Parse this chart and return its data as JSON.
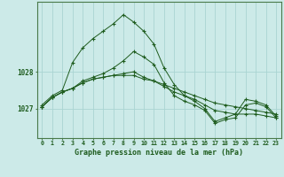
{
  "title": "Graphe pression niveau de la mer (hPa)",
  "x_labels": [
    "0",
    "1",
    "2",
    "3",
    "4",
    "5",
    "6",
    "7",
    "8",
    "9",
    "10",
    "11",
    "12",
    "13",
    "14",
    "15",
    "16",
    "17",
    "18",
    "19",
    "20",
    "21",
    "22",
    "23"
  ],
  "ylim": [
    1026.2,
    1029.9
  ],
  "yticks": [
    1027,
    1028
  ],
  "background_color": "#cceae8",
  "grid_color": "#aad4d2",
  "line_color": "#1e5c1e",
  "series": [
    [
      1027.05,
      1027.3,
      1027.45,
      1027.55,
      1027.7,
      1027.8,
      1027.85,
      1027.9,
      1027.9,
      1027.9,
      1027.8,
      1027.75,
      1027.65,
      1027.55,
      1027.45,
      1027.35,
      1027.25,
      1027.15,
      1027.1,
      1027.05,
      1027.0,
      1026.95,
      1026.9,
      1026.85
    ],
    [
      1027.05,
      1027.3,
      1027.45,
      1027.55,
      1027.7,
      1027.8,
      1027.85,
      1027.9,
      1027.95,
      1028.0,
      1027.85,
      1027.75,
      1027.6,
      1027.45,
      1027.35,
      1027.25,
      1027.1,
      1026.95,
      1026.9,
      1026.85,
      1026.85,
      1026.85,
      1026.8,
      1026.75
    ],
    [
      1027.1,
      1027.35,
      1027.5,
      1028.25,
      1028.65,
      1028.9,
      1029.1,
      1029.3,
      1029.55,
      1029.35,
      1029.1,
      1028.75,
      1028.1,
      1027.65,
      1027.35,
      1027.2,
      1027.0,
      1026.65,
      1026.75,
      1026.85,
      1027.25,
      1027.2,
      1027.1,
      1026.8
    ],
    [
      1027.05,
      1027.3,
      1027.45,
      1027.55,
      1027.75,
      1027.85,
      1027.95,
      1028.1,
      1028.3,
      1028.55,
      1028.4,
      1028.2,
      1027.7,
      1027.35,
      1027.2,
      1027.1,
      1026.95,
      1026.6,
      1026.7,
      1026.75,
      1027.1,
      1027.15,
      1027.05,
      1026.75
    ]
  ]
}
